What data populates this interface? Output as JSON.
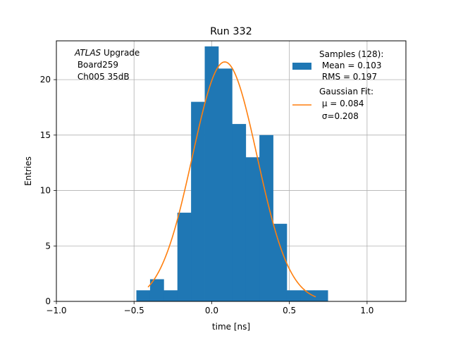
{
  "chart_data": {
    "type": "bar",
    "title": "Run 332",
    "xlabel": "time [ns]",
    "ylabel": "Entries",
    "xlim": [
      -1.0,
      1.25
    ],
    "ylim": [
      0,
      23.5
    ],
    "xticks": [
      -1.0,
      -0.5,
      0.0,
      0.5,
      1.0
    ],
    "xtick_labels": [
      "−1.0",
      "−0.5",
      "0.0",
      "0.5",
      "1.0"
    ],
    "yticks": [
      0,
      5,
      10,
      15,
      20
    ],
    "ytick_labels": [
      "0",
      "5",
      "10",
      "15",
      "20"
    ],
    "grid": true,
    "histogram": {
      "bin_edges": [
        -0.485,
        -0.397,
        -0.309,
        -0.221,
        -0.133,
        -0.045,
        0.043,
        0.131,
        0.219,
        0.307,
        0.395,
        0.483,
        0.571,
        0.659,
        0.747
      ],
      "counts": [
        1,
        2,
        1,
        8,
        18,
        23,
        21,
        16,
        13,
        15,
        7,
        1,
        1,
        1
      ],
      "color": "#1f77b4"
    },
    "gaussian_fit": {
      "mu": 0.084,
      "sigma": 0.208,
      "amplitude": 21.6,
      "x_range": [
        -0.41,
        0.67
      ],
      "color": "#ff7f0e"
    },
    "annotation": {
      "italic": "ATLAS",
      "first_line_rest": " Upgrade",
      "lines": [
        " Board259",
        " Ch005 35dB"
      ]
    },
    "legend": {
      "placement": "top-right",
      "samples": [
        "Samples (128):",
        " Mean = 0.103",
        " RMS = 0.197"
      ],
      "fit": [
        "Gaussian Fit:",
        " μ = 0.084",
        " σ=0.208"
      ]
    }
  }
}
